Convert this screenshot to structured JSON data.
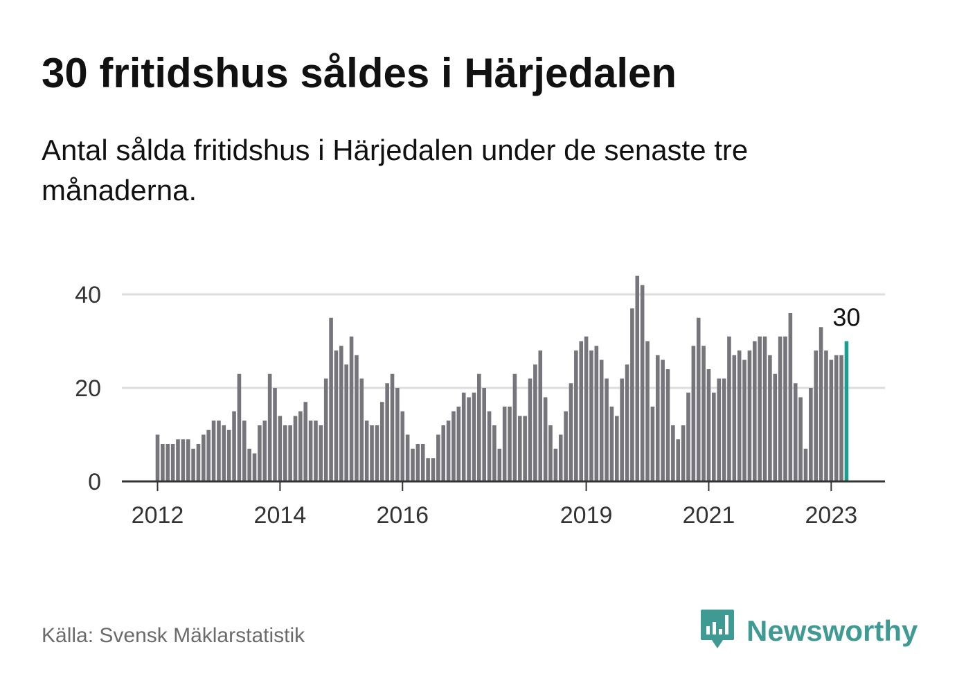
{
  "title": "30 fritidshus såldes i Härjedalen",
  "subtitle": "Antal sålda fritidshus i Härjedalen under de senaste tre månaderna.",
  "source": "Källa: Svensk Mäklarstatistik",
  "logo": {
    "text": "Newsworthy",
    "icon": "newsworthy-bar-chart-icon"
  },
  "colors": {
    "bar": "#76757b",
    "highlight": "#1a9e8f",
    "grid": "#dddddd",
    "axis": "#333333",
    "brand": "#3f9a93"
  },
  "chart_data": {
    "type": "bar",
    "x_start": "2012-01",
    "frequency": "monthly",
    "ylim": [
      0,
      45
    ],
    "y_ticks": [
      0,
      20,
      40
    ],
    "y_tick_labels": [
      "0",
      "20",
      "40"
    ],
    "x_tick_labels": [
      {
        "label": "2012",
        "month": "2012-01"
      },
      {
        "label": "2014",
        "month": "2014-01"
      },
      {
        "label": "2016",
        "month": "2016-01"
      },
      {
        "label": "2019",
        "month": "2019-01"
      },
      {
        "label": "2021",
        "month": "2021-01"
      },
      {
        "label": "2023",
        "month": "2023-01"
      }
    ],
    "grid": true,
    "values": [
      10,
      8,
      8,
      8,
      9,
      9,
      9,
      7,
      8,
      10,
      11,
      13,
      13,
      12,
      11,
      15,
      23,
      13,
      7,
      6,
      12,
      13,
      23,
      20,
      14,
      12,
      12,
      14,
      15,
      17,
      13,
      13,
      12,
      22,
      35,
      28,
      29,
      25,
      31,
      27,
      22,
      13,
      12,
      12,
      17,
      21,
      23,
      20,
      15,
      10,
      7,
      8,
      8,
      5,
      5,
      10,
      12,
      13,
      15,
      16,
      19,
      18,
      19,
      23,
      20,
      15,
      12,
      7,
      16,
      16,
      23,
      14,
      14,
      22,
      25,
      28,
      18,
      12,
      7,
      10,
      15,
      21,
      28,
      30,
      31,
      28,
      29,
      26,
      22,
      16,
      14,
      22,
      25,
      37,
      44,
      42,
      30,
      16,
      27,
      26,
      24,
      12,
      9,
      12,
      19,
      29,
      35,
      29,
      24,
      19,
      22,
      22,
      31,
      27,
      28,
      26,
      28,
      30,
      31,
      31,
      27,
      23,
      31,
      31,
      36,
      21,
      18,
      7,
      20,
      28,
      33,
      28,
      26,
      27,
      27,
      30
    ],
    "highlight_last": true,
    "last_value_label": "30"
  }
}
